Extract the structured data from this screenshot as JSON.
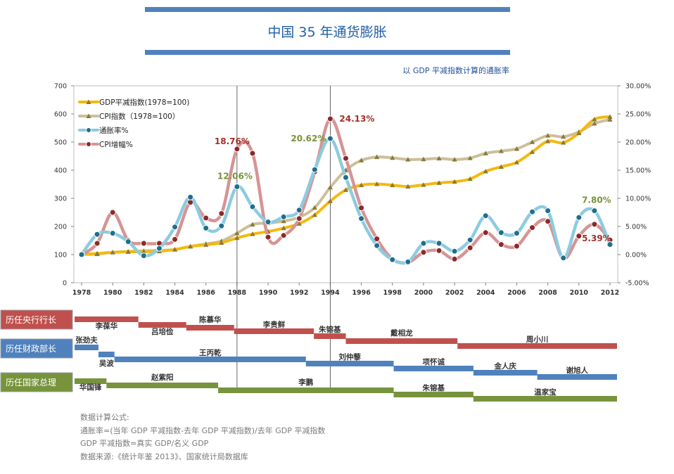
{
  "chart_data": {
    "type": "line",
    "title": "中国 35 年通货膨胀",
    "subtitle": "以 GDP 平减指数计算的通胀率",
    "x": [
      1978,
      1979,
      1980,
      1981,
      1982,
      1983,
      1984,
      1985,
      1986,
      1987,
      1988,
      1989,
      1990,
      1991,
      1992,
      1993,
      1994,
      1995,
      1996,
      1997,
      1998,
      1999,
      2000,
      2001,
      2002,
      2003,
      2004,
      2005,
      2006,
      2007,
      2008,
      2009,
      2010,
      2011,
      2012
    ],
    "x_ticks": [
      "1978",
      "1980",
      "1982",
      "1984",
      "1986",
      "1988",
      "1990",
      "1992",
      "1994",
      "1996",
      "1998",
      "2000",
      "2002",
      "2004",
      "2006",
      "2008",
      "2010",
      "2012"
    ],
    "y_left": {
      "range": [
        0,
        700
      ],
      "ticks": [
        "0",
        "100",
        "200",
        "300",
        "400",
        "500",
        "600",
        "700"
      ]
    },
    "y_right": {
      "range": [
        -5,
        30
      ],
      "ticks": [
        "-5.00%",
        "0.00%",
        "5.00%",
        "10.00%",
        "15.00%",
        "20.00%",
        "25.00%",
        "30.00%"
      ]
    },
    "vertical_lines": [
      1988,
      1994
    ],
    "series": [
      {
        "name": "GDP平减指数(1978=100)",
        "axis": "left",
        "color": "#f5b90d",
        "marker": "triangle",
        "values": [
          100,
          104,
          108,
          110,
          110,
          112,
          118,
          129,
          135,
          142,
          159,
          173,
          182,
          194,
          210,
          241,
          290,
          330,
          347,
          351,
          347,
          342,
          348,
          355,
          359,
          369,
          396,
          412,
          428,
          465,
          503,
          498,
          532,
          581,
          590
        ]
      },
      {
        "name": "CPI指数（1978=100）",
        "axis": "left",
        "color": "#cbbf9b",
        "marker": "triangle",
        "values": [
          100,
          102,
          108,
          111,
          113,
          115,
          118,
          129,
          138,
          148,
          176,
          207,
          212,
          219,
          233,
          267,
          339,
          400,
          435,
          447,
          444,
          438,
          439,
          442,
          438,
          443,
          460,
          468,
          476,
          500,
          523,
          519,
          536,
          566,
          580
        ]
      },
      {
        "name": "通胀率%",
        "axis": "right",
        "color": "#8dcbe0",
        "marker": "circle",
        "values": [
          0,
          3.6,
          3.8,
          2.3,
          -0.2,
          1.1,
          4.9,
          10.2,
          4.7,
          5.1,
          12.06,
          8.5,
          5.8,
          6.7,
          7.9,
          15.1,
          20.62,
          13.7,
          6.4,
          1.6,
          -0.9,
          -1.3,
          2.0,
          2.0,
          0.6,
          2.6,
          6.9,
          3.9,
          3.8,
          7.6,
          7.8,
          -0.6,
          6.6,
          7.8,
          1.8
        ]
      },
      {
        "name": "CPI增幅%",
        "axis": "right",
        "color": "#d69494",
        "marker": "circle",
        "values": [
          0,
          2.0,
          7.5,
          2.5,
          2.0,
          2.0,
          2.7,
          9.3,
          6.5,
          7.3,
          18.76,
          18.0,
          3.1,
          3.4,
          6.4,
          14.7,
          24.13,
          17.1,
          8.3,
          2.8,
          -0.8,
          -1.4,
          0.4,
          0.7,
          -0.8,
          1.2,
          3.9,
          1.8,
          1.5,
          4.8,
          5.9,
          -0.7,
          3.3,
          5.39,
          2.6
        ]
      }
    ],
    "annotations": [
      {
        "text": "18.76%",
        "x": 1988,
        "series": "CPI增幅%",
        "color": "#a3302a"
      },
      {
        "text": "12.06%",
        "x": 1988,
        "series": "通胀率%",
        "color": "#77933c"
      },
      {
        "text": "20.62%",
        "x": 1994,
        "series": "通胀率%",
        "color": "#77933c"
      },
      {
        "text": "24.13%",
        "x": 1994,
        "series": "CPI增幅%",
        "color": "#a3302a"
      },
      {
        "text": "7.80%",
        "x": 2011,
        "series": "通胀率%",
        "color": "#77933c"
      },
      {
        "text": "5.39%",
        "x": 2011,
        "series": "CPI增幅%",
        "color": "#a3302a"
      }
    ]
  },
  "timeline": [
    {
      "label": "历任央行行长",
      "color": "#c0504d",
      "label_text_color": "#ffffff",
      "terms": [
        {
          "name": "李葆华",
          "start": 1978,
          "end": 1982
        },
        {
          "name": "吕培俭",
          "start": 1982,
          "end": 1985
        },
        {
          "name": "陈慕华",
          "start": 1985,
          "end": 1988
        },
        {
          "name": "李贵鲜",
          "start": 1988,
          "end": 1993
        },
        {
          "name": "朱镕基",
          "start": 1993,
          "end": 1995
        },
        {
          "name": "戴相龙",
          "start": 1995,
          "end": 2002
        },
        {
          "name": "周小川",
          "start": 2002,
          "end": 2012
        }
      ]
    },
    {
      "label": "历任财政部长",
      "color": "#4f81bd",
      "label_text_color": "#ffffff",
      "terms": [
        {
          "name": "张劲夫",
          "start": 1978,
          "end": 1979.5
        },
        {
          "name": "吴波",
          "start": 1979.5,
          "end": 1980.5
        },
        {
          "name": "王丙乾",
          "start": 1980.5,
          "end": 1992.5
        },
        {
          "name": "刘仲藜",
          "start": 1992.5,
          "end": 1998
        },
        {
          "name": "项怀诚",
          "start": 1998,
          "end": 2003
        },
        {
          "name": "金人庆",
          "start": 2003,
          "end": 2007
        },
        {
          "name": "谢旭人",
          "start": 2007,
          "end": 2012
        }
      ]
    },
    {
      "label": "历任国家总理",
      "color": "#77933c",
      "label_text_color": "#ffffff",
      "terms": [
        {
          "name": "华国锋",
          "start": 1978,
          "end": 1980
        },
        {
          "name": "赵紫阳",
          "start": 1980,
          "end": 1987
        },
        {
          "name": "李鹏",
          "start": 1987,
          "end": 1998
        },
        {
          "name": "朱镕基",
          "start": 1998,
          "end": 2003
        },
        {
          "name": "温家宝",
          "start": 2003,
          "end": 2012
        }
      ]
    }
  ],
  "notes": {
    "heading": "数据计算公式:",
    "formula1": "通胀率=(当年 GDP 平减指数-去年 GDP 平减指数)/去年 GDP 平减指数",
    "formula2": "GDP 平减指数=真实 GDP/名义 GDP",
    "source": "数据来源:《统计年鉴 2013》、国家统计局数据库"
  },
  "colors": {
    "title": "#1f5fa8",
    "title_bar": "#4f81bd",
    "subtitle": "#1f4e99",
    "axis_text": "#333333"
  }
}
